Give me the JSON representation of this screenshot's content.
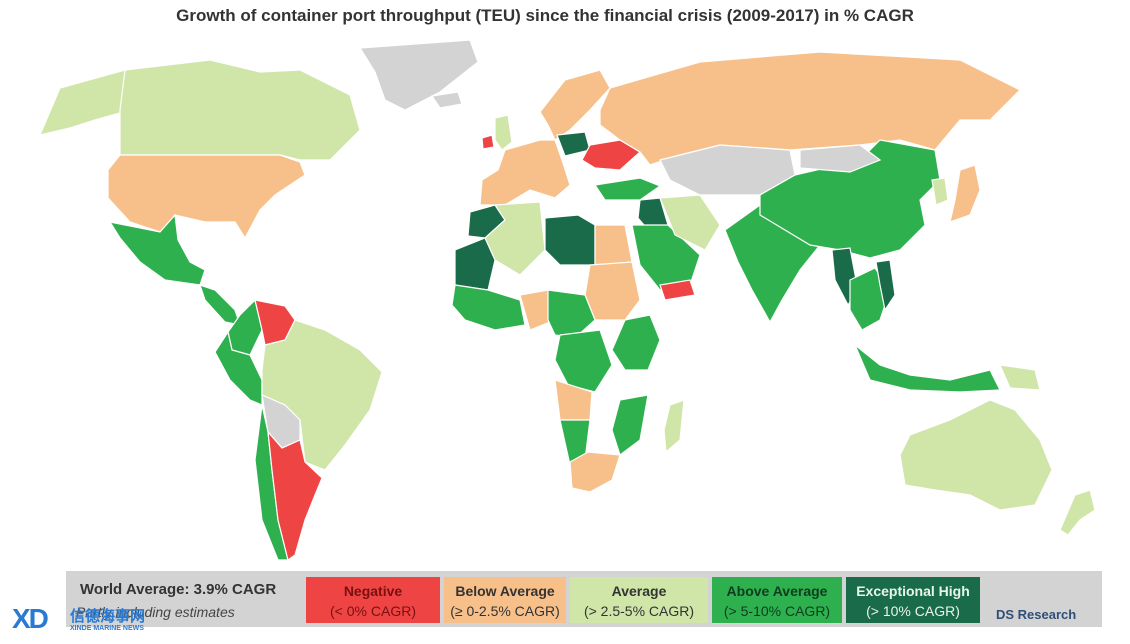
{
  "title": "Growth of container port throughput (TEU) since the financial crisis (2009-2017) in % CAGR",
  "colors": {
    "negative": "#ef4444",
    "below_average": "#f7c08a",
    "average": "#cfe6a8",
    "above_average": "#2fb04f",
    "exceptional_high": "#1a6b4a",
    "no_data": "#d3d3d3"
  },
  "legend": {
    "world_average": "World Average: 3.9% CAGR",
    "note": "Partly including estimates",
    "items": [
      {
        "label": "Negative",
        "range": "(< 0% CAGR)"
      },
      {
        "label": "Below Average",
        "range": "(≥ 0-2.5% CAGR)"
      },
      {
        "label": "Average",
        "range": "(> 2.5-5% CAGR)"
      },
      {
        "label": "Above Average",
        "range": "(> 5-10% CAGR)"
      },
      {
        "label": "Exceptional High",
        "range": "(> 10% CAGR)"
      }
    ]
  },
  "source": "DS Research",
  "watermark": {
    "logo": "XD",
    "cn": "信德海事网",
    "en": "XINDE MARINE NEWS"
  },
  "regions": [
    {
      "region": "greenland",
      "category": "no_data"
    },
    {
      "region": "canada",
      "category": "average"
    },
    {
      "region": "alaska",
      "category": "average"
    },
    {
      "region": "usa",
      "category": "below_average"
    },
    {
      "region": "mexico",
      "category": "above_average"
    },
    {
      "region": "central-america",
      "category": "above_average"
    },
    {
      "region": "venezuela",
      "category": "negative"
    },
    {
      "region": "colombia",
      "category": "above_average"
    },
    {
      "region": "peru",
      "category": "above_average"
    },
    {
      "region": "brazil",
      "category": "average"
    },
    {
      "region": "bolivia",
      "category": "no_data"
    },
    {
      "region": "argentina",
      "category": "negative"
    },
    {
      "region": "chile",
      "category": "above_average"
    },
    {
      "region": "iceland",
      "category": "no_data"
    },
    {
      "region": "ireland",
      "category": "negative"
    },
    {
      "region": "uk",
      "category": "average"
    },
    {
      "region": "scandinavia",
      "category": "below_average"
    },
    {
      "region": "western-europe",
      "category": "below_average"
    },
    {
      "region": "poland",
      "category": "exceptional_high"
    },
    {
      "region": "ukraine",
      "category": "negative"
    },
    {
      "region": "turkey",
      "category": "above_average"
    },
    {
      "region": "russia",
      "category": "below_average"
    },
    {
      "region": "kazakhstan",
      "category": "no_data"
    },
    {
      "region": "morocco",
      "category": "exceptional_high"
    },
    {
      "region": "algeria",
      "category": "average"
    },
    {
      "region": "libya",
      "category": "exceptional_high"
    },
    {
      "region": "egypt",
      "category": "below_average"
    },
    {
      "region": "sudan",
      "category": "below_average"
    },
    {
      "region": "mauritania",
      "category": "exceptional_high"
    },
    {
      "region": "west-africa",
      "category": "above_average"
    },
    {
      "region": "nigeria",
      "category": "below_average"
    },
    {
      "region": "central-africa",
      "category": "above_average"
    },
    {
      "region": "dr-congo",
      "category": "above_average"
    },
    {
      "region": "east-africa",
      "category": "above_average"
    },
    {
      "region": "angola",
      "category": "below_average"
    },
    {
      "region": "mozambique",
      "category": "above_average"
    },
    {
      "region": "namibia",
      "category": "above_average"
    },
    {
      "region": "south-africa",
      "category": "below_average"
    },
    {
      "region": "madagascar",
      "category": "average"
    },
    {
      "region": "saudi-arabia",
      "category": "above_average"
    },
    {
      "region": "yemen",
      "category": "negative"
    },
    {
      "region": "iraq",
      "category": "exceptional_high"
    },
    {
      "region": "iran",
      "category": "average"
    },
    {
      "region": "india",
      "category": "above_average"
    },
    {
      "region": "china",
      "category": "above_average"
    },
    {
      "region": "mongolia",
      "category": "no_data"
    },
    {
      "region": "myanmar",
      "category": "exceptional_high"
    },
    {
      "region": "southeast-asia",
      "category": "above_average"
    },
    {
      "region": "vietnam",
      "category": "exceptional_high"
    },
    {
      "region": "japan",
      "category": "below_average"
    },
    {
      "region": "korea",
      "category": "average"
    },
    {
      "region": "indonesia",
      "category": "above_average"
    },
    {
      "region": "papua-new-guinea",
      "category": "average"
    },
    {
      "region": "australia",
      "category": "average"
    },
    {
      "region": "new-zealand",
      "category": "average"
    }
  ]
}
